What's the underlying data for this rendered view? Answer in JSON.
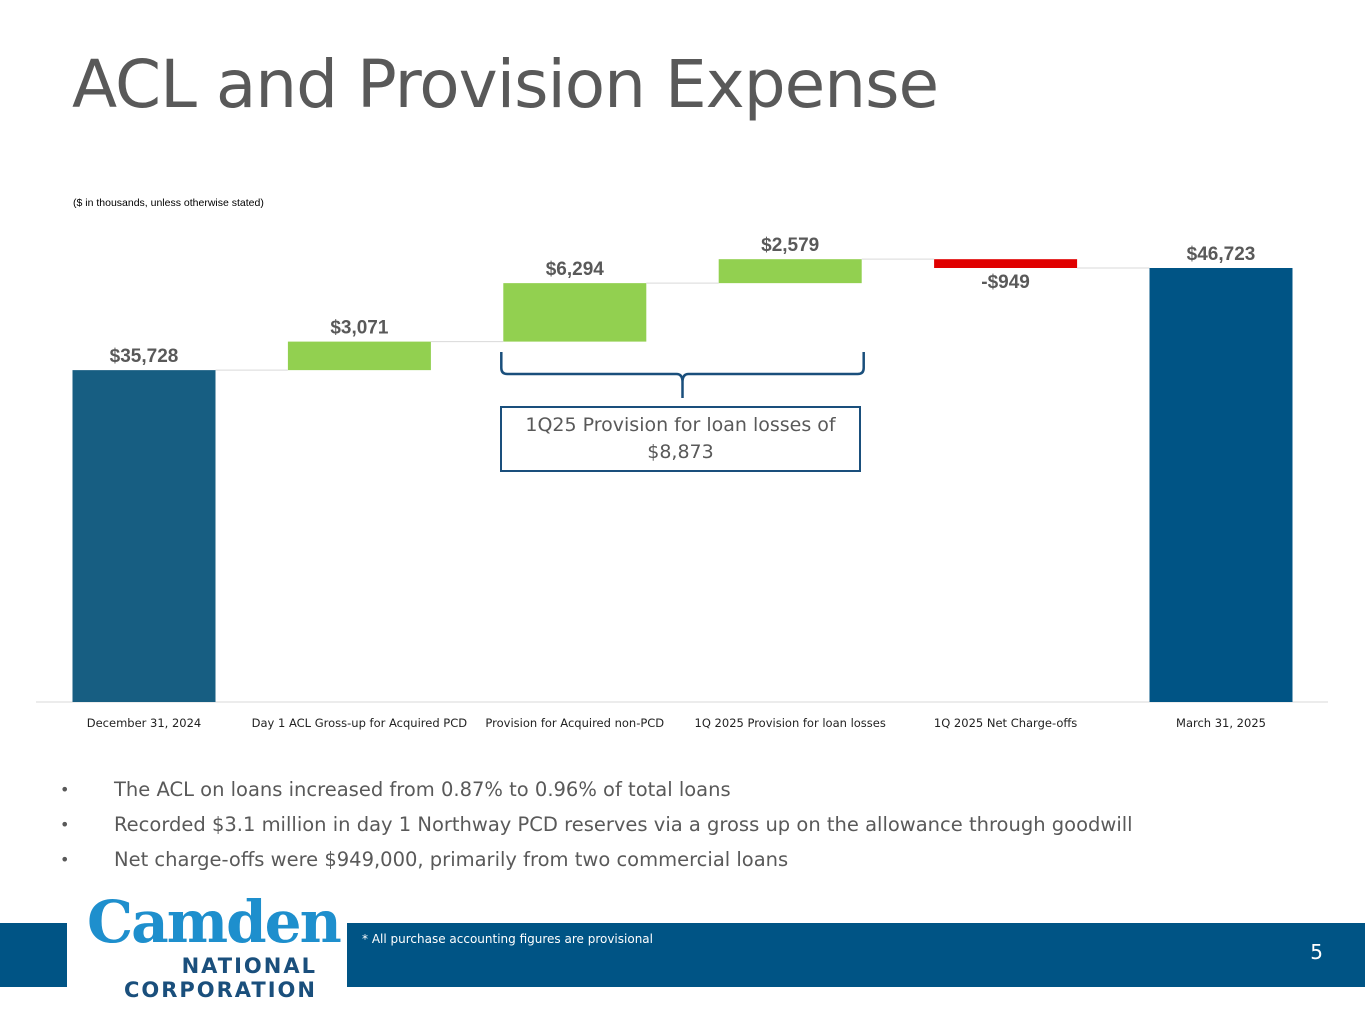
{
  "slide": {
    "title": "ACL and Provision Expense",
    "subtitle": "($ in thousands, unless otherwise stated)",
    "callout": "1Q25 Provision for loan losses of $8,873",
    "bullets": [
      "The ACL on loans increased from 0.87% to 0.96% of total loans",
      "Recorded $3.1 million in day 1 Northway PCD reserves via a gross up on the allowance through goodwill",
      "Net charge-offs were $949,000, primarily from two commercial loans"
    ],
    "bullet_symbol": "•",
    "footnote": "* All purchase accounting figures are provisional",
    "page_number": "5"
  },
  "logo": {
    "name": "Camden",
    "line2": "NATIONAL",
    "line3": "CORPORATION"
  },
  "colors": {
    "total_bar_start": "#175e82",
    "total_bar_end": "#005485",
    "increase": "#92d050",
    "decrease": "#e00000",
    "label": "#595959",
    "brand_blue": "#005485",
    "bracket": "#1a4f7c"
  },
  "chart_data": {
    "type": "waterfall",
    "title": "ACL and Provision Expense",
    "unit": "$ in thousands",
    "categories": [
      "December 31, 2024",
      "Day 1 ACL Gross-up for Acquired PCD",
      "Provision for Acquired non-PCD",
      "1Q 2025 Provision for loan losses",
      "1Q 2025 Net Charge-offs",
      "March 31, 2025"
    ],
    "values": [
      35728,
      3071,
      6294,
      2579,
      -949,
      46723
    ],
    "kinds": [
      "total",
      "increase",
      "increase",
      "increase",
      "decrease",
      "total"
    ],
    "data_labels": [
      "$35,728",
      "$3,071",
      "$6,294",
      "$2,579",
      "-$949",
      "$46,723"
    ],
    "ylim": [
      0,
      50000
    ],
    "grid": false,
    "legend": "none",
    "annotation": {
      "text": "1Q25 Provision for loan losses of $8,873",
      "spans_categories": [
        2,
        3
      ]
    }
  }
}
